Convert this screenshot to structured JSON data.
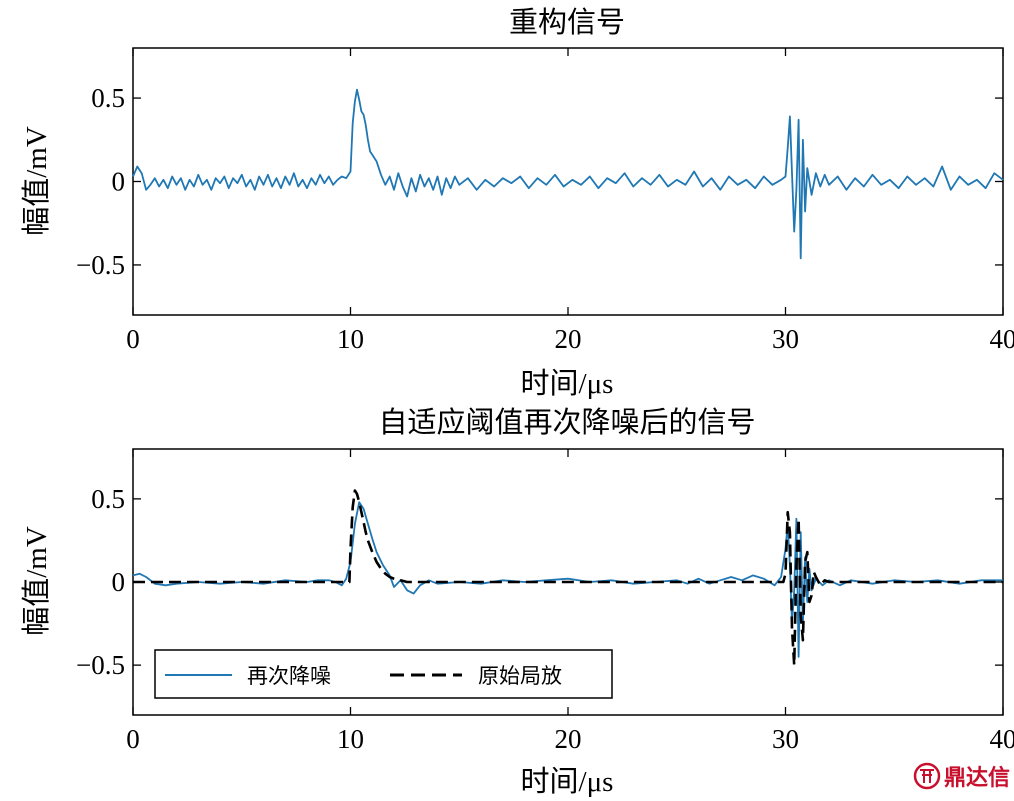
{
  "watermark": {
    "text": "鼎达信"
  },
  "chart_data": [
    {
      "type": "line",
      "title": "重构信号",
      "xlabel": "时间/μs",
      "ylabel": "幅值/mV",
      "xlim": [
        0,
        40
      ],
      "ylim": [
        -0.8,
        0.8
      ],
      "xticks": [
        0,
        10,
        20,
        30,
        40
      ],
      "yticks": [
        -0.5,
        0,
        0.5
      ],
      "xtick_labels": [
        "0",
        "10",
        "20",
        "30",
        "40"
      ],
      "ytick_labels": [
        "−0.5",
        "0",
        "0.5"
      ],
      "grid": false,
      "series": [
        {
          "color": "#1f77b4",
          "style": "solid",
          "x": [
            0,
            0.2,
            0.4,
            0.6,
            0.8,
            1.0,
            1.2,
            1.4,
            1.6,
            1.8,
            2.0,
            2.2,
            2.4,
            2.6,
            2.8,
            3.0,
            3.2,
            3.4,
            3.6,
            3.8,
            4.0,
            4.2,
            4.4,
            4.6,
            4.8,
            5.0,
            5.2,
            5.4,
            5.6,
            5.8,
            6.0,
            6.2,
            6.4,
            6.6,
            6.8,
            7.0,
            7.2,
            7.4,
            7.6,
            7.8,
            8.0,
            8.2,
            8.4,
            8.6,
            8.8,
            9.0,
            9.2,
            9.4,
            9.6,
            9.8,
            10.0,
            10.1,
            10.2,
            10.3,
            10.4,
            10.5,
            10.6,
            10.7,
            10.8,
            10.9,
            11.0,
            11.2,
            11.4,
            11.6,
            11.8,
            12.0,
            12.2,
            12.4,
            12.6,
            12.8,
            13.0,
            13.2,
            13.4,
            13.6,
            13.8,
            14.0,
            14.2,
            14.4,
            14.6,
            14.8,
            15.0,
            15.4,
            15.8,
            16.2,
            16.6,
            17.0,
            17.4,
            17.8,
            18.2,
            18.6,
            19.0,
            19.4,
            19.8,
            20.2,
            20.6,
            21.0,
            21.4,
            21.8,
            22.2,
            22.6,
            23.0,
            23.4,
            23.8,
            24.2,
            24.6,
            25.0,
            25.4,
            25.8,
            26.2,
            26.6,
            27.0,
            27.4,
            27.8,
            28.2,
            28.6,
            29.0,
            29.4,
            29.8,
            30.0,
            30.1,
            30.2,
            30.3,
            30.4,
            30.5,
            30.6,
            30.7,
            30.8,
            30.9,
            31.0,
            31.2,
            31.4,
            31.6,
            31.8,
            32.0,
            32.4,
            32.8,
            33.2,
            33.6,
            34.0,
            34.4,
            34.8,
            35.2,
            35.6,
            36.0,
            36.4,
            36.8,
            37.2,
            37.6,
            38.0,
            38.4,
            38.8,
            39.2,
            39.6,
            40.0
          ],
          "y": [
            0.03,
            0.09,
            0.05,
            -0.05,
            -0.02,
            0.02,
            -0.03,
            0.01,
            -0.04,
            0.03,
            -0.02,
            0.02,
            -0.05,
            0.01,
            -0.03,
            0.04,
            -0.02,
            0.01,
            -0.05,
            0.02,
            -0.01,
            0.03,
            -0.04,
            0.02,
            -0.01,
            0.04,
            -0.03,
            0.01,
            -0.05,
            0.03,
            -0.02,
            0.04,
            -0.03,
            0.02,
            -0.04,
            0.03,
            -0.02,
            0.05,
            -0.03,
            0.01,
            -0.04,
            0.02,
            -0.02,
            0.04,
            -0.01,
            0.03,
            -0.02,
            0.01,
            0.03,
            0.02,
            0.06,
            0.35,
            0.48,
            0.55,
            0.49,
            0.42,
            0.4,
            0.34,
            0.25,
            0.18,
            0.16,
            0.12,
            0.04,
            -0.02,
            0.03,
            -0.05,
            0.05,
            -0.03,
            -0.09,
            0.02,
            -0.06,
            0.04,
            -0.03,
            0.02,
            -0.05,
            0.03,
            -0.08,
            0.02,
            -0.04,
            0.03,
            -0.02,
            0.02,
            -0.05,
            0.01,
            -0.03,
            0.02,
            -0.01,
            0.03,
            -0.04,
            0.02,
            -0.02,
            0.04,
            -0.03,
            0.01,
            -0.02,
            0.03,
            -0.04,
            0.02,
            -0.01,
            0.05,
            -0.03,
            0.02,
            -0.02,
            0.04,
            -0.03,
            0.01,
            -0.02,
            0.06,
            -0.03,
            0.02,
            -0.05,
            0.03,
            -0.02,
            0.01,
            -0.04,
            0.03,
            -0.02,
            0.01,
            0.03,
            0.2,
            0.39,
            0.05,
            -0.3,
            -0.05,
            0.37,
            -0.46,
            0.25,
            -0.18,
            0.08,
            -0.08,
            0.05,
            -0.03,
            0.04,
            -0.02,
            0.03,
            -0.05,
            0.02,
            -0.03,
            0.04,
            -0.02,
            0.01,
            -0.04,
            0.03,
            -0.02,
            0.02,
            -0.03,
            0.09,
            -0.05,
            0.03,
            -0.02,
            0.01,
            -0.04,
            0.05,
            0.01
          ]
        }
      ]
    },
    {
      "type": "line",
      "title": "自适应阈值再次降噪后的信号",
      "xlabel": "时间/μs",
      "ylabel": "幅值/mV",
      "xlim": [
        0,
        40
      ],
      "ylim": [
        -0.8,
        0.8
      ],
      "xticks": [
        0,
        10,
        20,
        30,
        40
      ],
      "yticks": [
        -0.5,
        0,
        0.5
      ],
      "xtick_labels": [
        "0",
        "10",
        "20",
        "30",
        "40"
      ],
      "ytick_labels": [
        "−0.5",
        "0",
        "0.5"
      ],
      "grid": false,
      "legend": {
        "position": "bottom-left"
      },
      "series": [
        {
          "name": "再次降噪",
          "color": "#1f77b4",
          "style": "solid",
          "x": [
            0,
            0.3,
            0.6,
            1.0,
            1.5,
            2.0,
            3.0,
            4.0,
            5.0,
            6.0,
            7.0,
            8.0,
            8.5,
            9.0,
            9.3,
            9.6,
            9.8,
            10.0,
            10.2,
            10.4,
            10.6,
            10.8,
            11.0,
            11.2,
            11.5,
            11.8,
            12.0,
            12.3,
            12.6,
            12.9,
            13.2,
            13.6,
            14.0,
            15.0,
            16.0,
            17.0,
            18.0,
            19.0,
            20.0,
            21.0,
            22.0,
            23.0,
            24.0,
            25.0,
            25.5,
            26.0,
            26.5,
            27.0,
            27.5,
            28.0,
            28.5,
            29.0,
            29.5,
            29.8,
            30.0,
            30.1,
            30.2,
            30.3,
            30.4,
            30.5,
            30.6,
            30.7,
            30.8,
            30.9,
            31.0,
            31.1,
            31.2,
            31.4,
            31.7,
            32.0,
            32.5,
            33.0,
            34.0,
            35.0,
            36.0,
            37.0,
            38.0,
            39.0,
            40.0
          ],
          "y": [
            0.04,
            0.05,
            0.03,
            -0.01,
            -0.02,
            -0.01,
            0.0,
            -0.01,
            0.0,
            -0.01,
            0.01,
            0.0,
            0.01,
            0.01,
            0.0,
            -0.02,
            0.02,
            0.12,
            0.35,
            0.48,
            0.44,
            0.35,
            0.26,
            0.18,
            0.1,
            0.04,
            -0.03,
            0.01,
            -0.05,
            -0.07,
            -0.02,
            0.01,
            -0.01,
            0.0,
            -0.01,
            0.01,
            0.0,
            0.01,
            0.02,
            0.0,
            0.01,
            -0.01,
            0.0,
            0.01,
            -0.01,
            0.02,
            -0.01,
            0.01,
            0.03,
            0.01,
            0.04,
            0.02,
            -0.02,
            0.03,
            0.2,
            0.35,
            0.1,
            -0.25,
            -0.05,
            0.38,
            -0.45,
            0.3,
            -0.25,
            0.15,
            -0.12,
            0.08,
            -0.05,
            0.02,
            -0.02,
            0.01,
            -0.02,
            0.01,
            -0.01,
            0.01,
            0.0,
            0.01,
            -0.01,
            0.01,
            0.01
          ]
        },
        {
          "name": "原始局放",
          "color": "#000000",
          "style": "dashed",
          "x": [
            0,
            9.95,
            10.0,
            10.1,
            10.2,
            10.3,
            10.4,
            10.5,
            10.6,
            10.7,
            10.8,
            11.0,
            11.2,
            11.4,
            11.6,
            11.8,
            12.0,
            12.3,
            12.6,
            13.0,
            29.9,
            30.0,
            30.1,
            30.2,
            30.3,
            30.4,
            30.5,
            30.6,
            30.7,
            30.8,
            30.9,
            31.0,
            31.1,
            31.2,
            31.3,
            31.4,
            31.6,
            31.8,
            32.0,
            40.0
          ],
          "y": [
            0.0,
            0.0,
            0.2,
            0.45,
            0.55,
            0.53,
            0.48,
            0.42,
            0.36,
            0.3,
            0.25,
            0.18,
            0.12,
            0.08,
            0.05,
            0.03,
            0.02,
            0.01,
            0.0,
            0.0,
            0.0,
            0.05,
            0.42,
            0.3,
            -0.28,
            -0.5,
            0.1,
            0.38,
            -0.2,
            -0.35,
            0.12,
            0.18,
            -0.12,
            -0.08,
            0.06,
            0.03,
            -0.02,
            0.01,
            0.0,
            0.0
          ]
        }
      ]
    }
  ]
}
